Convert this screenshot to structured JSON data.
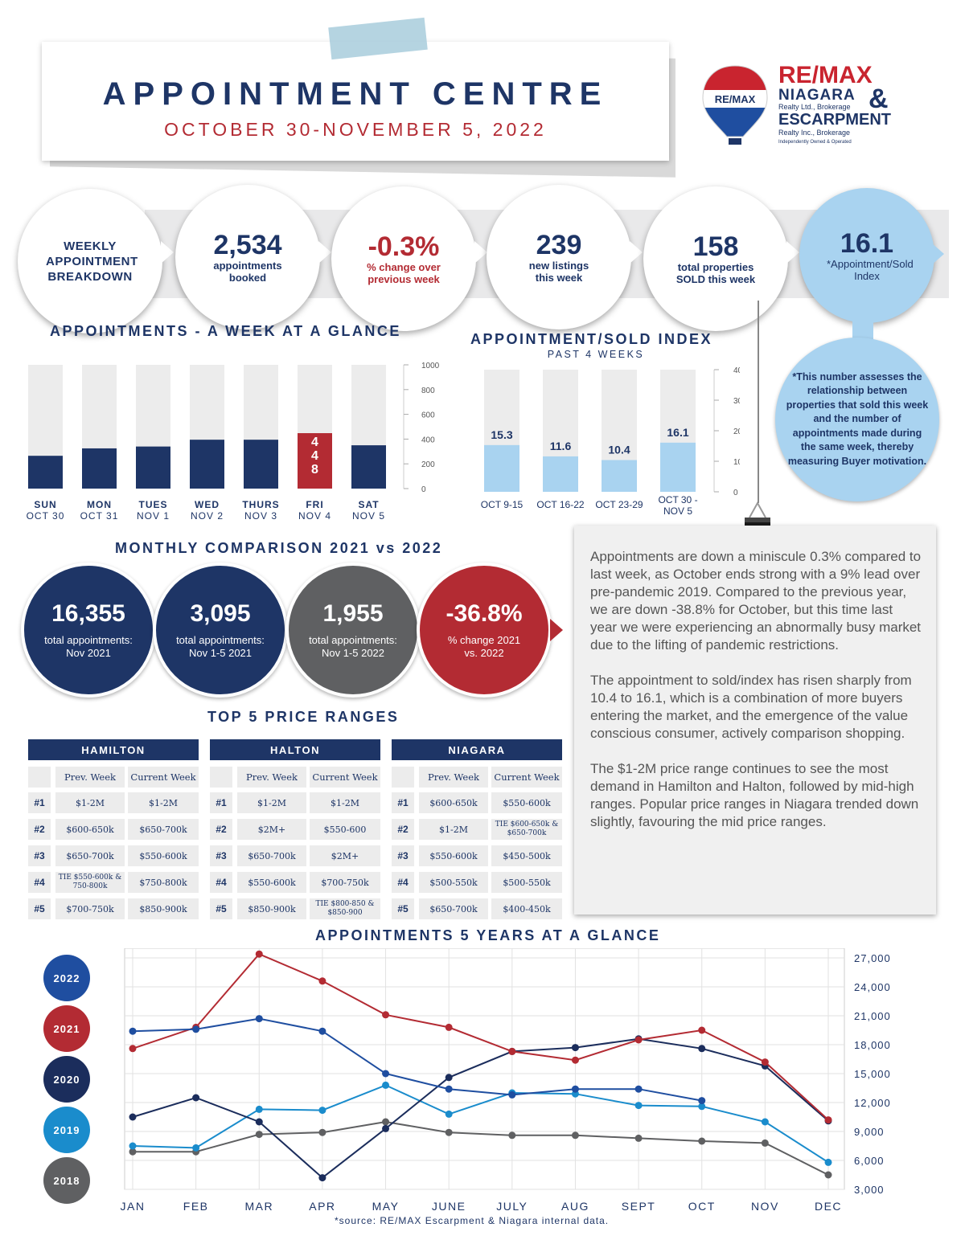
{
  "header": {
    "title": "APPOINTMENT CENTRE",
    "dates": "OCTOBER 30-NOVEMBER 5, 2022"
  },
  "logo": {
    "balloon": "RE/MAX",
    "brand": "RE/MAX",
    "line1": "NIAGARA",
    "line1_sub": "Realty Ltd., Brokerage",
    "amp": "&",
    "line2": "ESCARPMENT",
    "line2_sub": "Realty Inc., Brokerage",
    "tagline": "Independently Owned & Operated"
  },
  "stats": {
    "intro": "WEEKLY APPOINTMENT BREAKDOWN",
    "booked": {
      "value": "2,534",
      "label": "appointments booked"
    },
    "change": {
      "value": "-0.3%",
      "label": "% change over previous week"
    },
    "listings": {
      "value": "239",
      "label": "new listings this week"
    },
    "sold": {
      "value": "158",
      "label": "total properties SOLD this week"
    },
    "index": {
      "value": "16.1",
      "label": "*Appointment/Sold Index"
    }
  },
  "index_note": "*This number assesses the relationship between properties that sold this week and the number of appointments made during the same week, thereby measuring Buyer motivation.",
  "sections": {
    "week": "APPOINTMENTS - A WEEK AT A GLANCE",
    "index_title": "APPOINTMENT/SOLD INDEX",
    "index_sub": "PAST 4 WEEKS",
    "monthly": "MONTHLY COMPARISON 2021 vs 2022",
    "top5": "TOP 5 PRICE RANGES",
    "five_years": "APPOINTMENTS 5 YEARS AT A GLANCE"
  },
  "colors": {
    "navy": "#1e3566",
    "red": "#b32b33",
    "light_blue": "#a9d3f0",
    "gray_bar": "#ececec"
  },
  "monthly": [
    {
      "value": "16,355",
      "label": "total appointments: Nov 2021",
      "color": "#1e3566"
    },
    {
      "value": "3,095",
      "label": "total appointments: Nov 1-5 2021",
      "color": "#1e3566"
    },
    {
      "value": "1,955",
      "label": "total appointments: Nov 1-5 2022",
      "color": "#5f6062"
    },
    {
      "value": "-36.8%",
      "label": "% change 2021 vs. 2022",
      "color": "#b32b33"
    }
  ],
  "price_tables": {
    "col_prev": "Prev. Week",
    "col_curr": "Current Week",
    "ranks": [
      "#1",
      "#2",
      "#3",
      "#4",
      "#5"
    ],
    "regions": [
      {
        "name": "HAMILTON",
        "prev": [
          "$1-2M",
          "$600-650k",
          "$650-700k",
          "TIE $550-600k & 750-800k",
          "$700-750k"
        ],
        "curr": [
          "$1-2M",
          "$650-700k",
          "$550-600k",
          "$750-800k",
          "$850-900k"
        ]
      },
      {
        "name": "HALTON",
        "prev": [
          "$1-2M",
          "$2M+",
          "$650-700k",
          "$550-600k",
          "$850-900k"
        ],
        "curr": [
          "$1-2M",
          "$550-600",
          "$2M+",
          "$700-750k",
          "TIE $800-850 & $850-900"
        ]
      },
      {
        "name": "NIAGARA",
        "prev": [
          "$600-650k",
          "$1-2M",
          "$550-600k",
          "$500-550k",
          "$650-700k"
        ],
        "curr": [
          "$550-600k",
          "TIE $600-650k & $650-700k",
          "$450-500k",
          "$500-550k",
          "$400-450k"
        ]
      }
    ]
  },
  "commentary": [
    "Appointments are down a miniscule 0.3% compared to last week, as October ends strong with a 9% lead over pre-pandemic 2019. Compared to the previous year, we are down -38.8% for October, but this time last year we were experiencing an abnormally busy market due to the lifting of pandemic restrictions.",
    "The appointment to sold/index has risen sharply from 10.4 to 16.1, which is a combination of more buyers entering the market, and the emergence of the value conscious consumer, actively comparison shopping.",
    "The $1-2M price range continues to see the most demand in Hamilton and Halton, followed by mid-high  ranges. Popular price ranges in Niagara trended down slightly, favouring the mid price ranges."
  ],
  "source": "*source:  RE/MAX Escarpment & Niagara internal data.",
  "chart_data": [
    {
      "type": "bar",
      "title": "APPOINTMENTS - A WEEK AT A GLANCE",
      "categories": [
        "SUN",
        "MON",
        "TUES",
        "WED",
        "THURS",
        "FRI",
        "SAT"
      ],
      "sub_labels": [
        "OCT 30",
        "OCT 31",
        "NOV 1",
        "NOV 2",
        "NOV 3",
        "NOV 4",
        "NOV 5"
      ],
      "values": [
        265,
        325,
        340,
        395,
        395,
        448,
        350
      ],
      "data_labels": {
        "FRI": "448"
      },
      "ylim": [
        0,
        1000
      ],
      "yticks": [
        "0",
        "200",
        "400",
        "600",
        "800",
        "1000"
      ],
      "highlight": "FRI"
    },
    {
      "type": "bar",
      "title": "APPOINTMENT/SOLD INDEX",
      "subtitle": "PAST 4 WEEKS",
      "categories": [
        "OCT 9-15",
        "OCT 16-22",
        "OCT 23-29",
        "OCT 30 - NOV 5"
      ],
      "values": [
        15.3,
        11.6,
        10.4,
        16.1
      ],
      "data_labels": [
        "15.3",
        "11.6",
        "10.4",
        "16.1"
      ],
      "ylim": [
        0,
        40
      ],
      "yticks": [
        "0",
        "10",
        "20",
        "30",
        "40"
      ]
    },
    {
      "type": "line",
      "title": "APPOINTMENTS 5 YEARS AT A GLANCE",
      "categories": [
        "JAN",
        "FEB",
        "MAR",
        "APR",
        "MAY",
        "JUNE",
        "JULY",
        "AUG",
        "SEPT",
        "OCT",
        "NOV",
        "DEC"
      ],
      "ylim": [
        3000,
        28000
      ],
      "yticks": [
        "3,000",
        "6,000",
        "9,000",
        "12,000",
        "15,000",
        "18,000",
        "21,000",
        "24,000",
        "27,000"
      ],
      "grid": true,
      "legend": "left",
      "series": [
        {
          "name": "2022",
          "color": "#1f4ea0",
          "values": [
            19400,
            19600,
            20700,
            19400,
            15000,
            13400,
            12800,
            13400,
            13400,
            12200,
            null,
            null
          ]
        },
        {
          "name": "2021",
          "color": "#b32b33",
          "values": [
            17600,
            19800,
            27400,
            24600,
            21100,
            19800,
            17300,
            16400,
            18500,
            19500,
            16200,
            10200
          ]
        },
        {
          "name": "2020",
          "color": "#1b2d5c",
          "values": [
            10500,
            12500,
            10000,
            4200,
            9300,
            14600,
            17300,
            17700,
            18600,
            17600,
            15800,
            10100
          ]
        },
        {
          "name": "2019",
          "color": "#1a8ccc",
          "values": [
            7500,
            7300,
            11300,
            11200,
            13800,
            10800,
            13000,
            12900,
            11700,
            11600,
            10000,
            5800
          ]
        },
        {
          "name": "2018",
          "color": "#5f6062",
          "values": [
            6900,
            6900,
            8700,
            8900,
            10000,
            8900,
            8600,
            8600,
            8300,
            8000,
            7800,
            4500
          ]
        }
      ]
    }
  ]
}
